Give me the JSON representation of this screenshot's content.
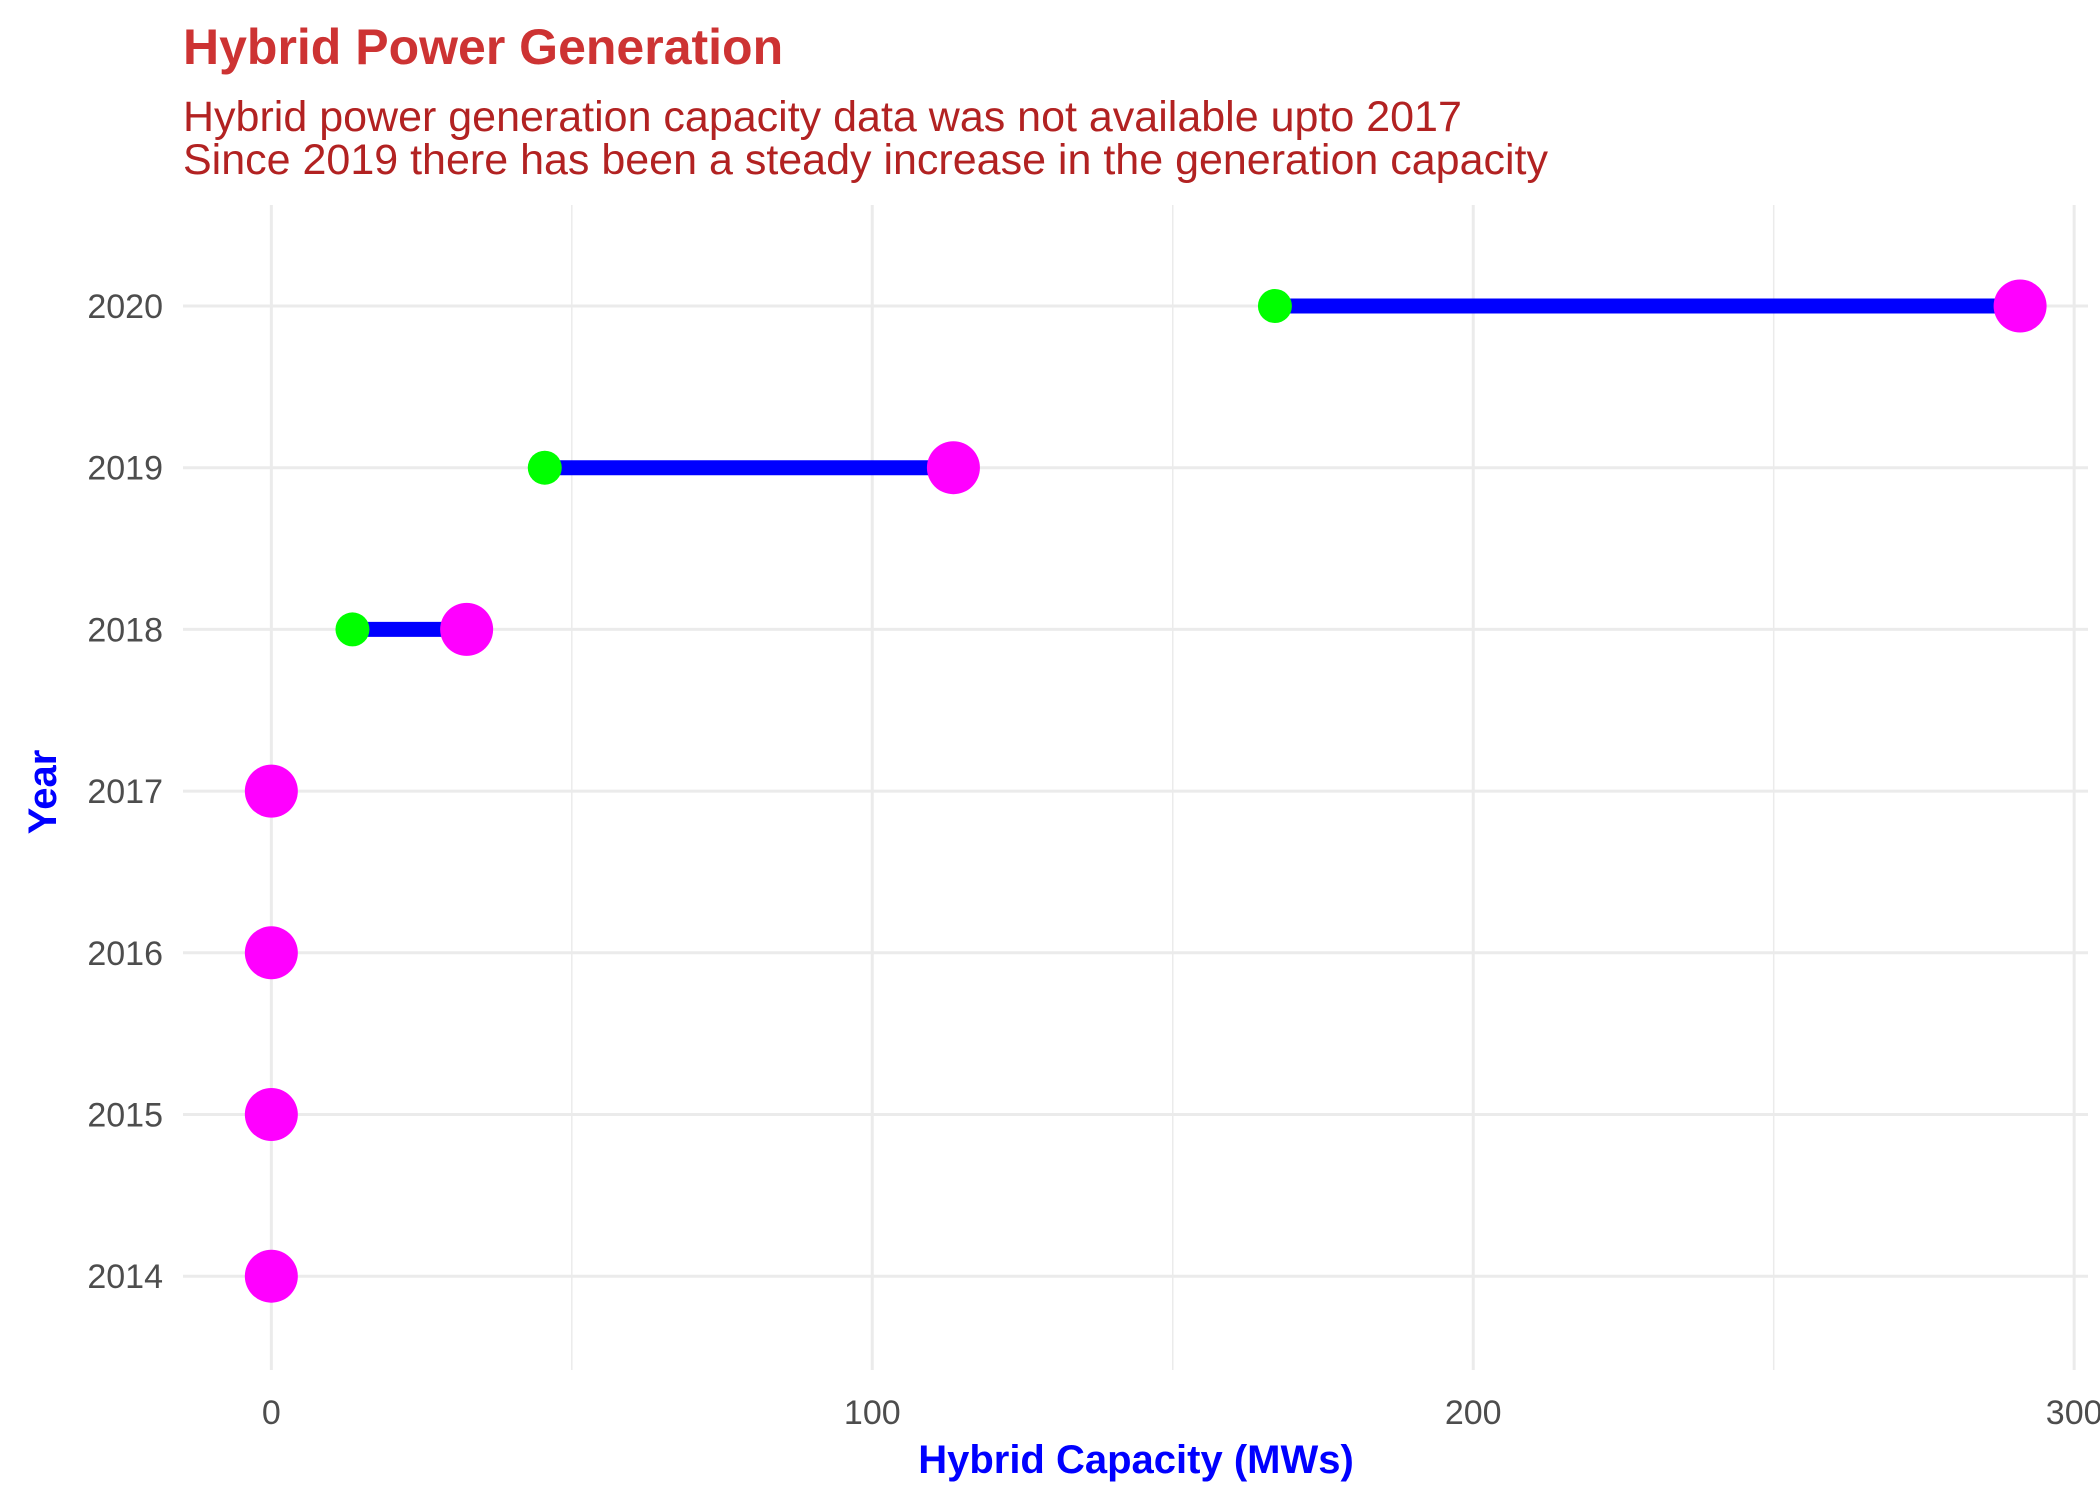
{
  "chart_data": {
    "type": "dumbbell",
    "title": "Hybrid Power Generation",
    "subtitle": [
      "Hybrid power generation capacity data was not available upto 2017",
      "Since 2019 there has been a steady increase in the generation capacity"
    ],
    "xlabel": "Hybrid Capacity (MWs)",
    "ylabel": "Year",
    "xlim": [
      -14.7,
      302.3
    ],
    "x_ticks": [
      0,
      100,
      200,
      300
    ],
    "x_tick_labels": [
      "0",
      "100",
      "200",
      "300"
    ],
    "grid": true,
    "legend": "none",
    "categories": [
      "2014",
      "2015",
      "2016",
      "2017",
      "2018",
      "2019",
      "2020"
    ],
    "series": [
      {
        "role": "start",
        "color": "#00FF00",
        "values": [
          null,
          null,
          null,
          null,
          13.5,
          45.5,
          167.0
        ]
      },
      {
        "role": "end",
        "color": "#FF00FF",
        "values": [
          0,
          0,
          0,
          0,
          32.5,
          113.5,
          291.0
        ]
      }
    ],
    "segment_color": "#0000FF"
  }
}
